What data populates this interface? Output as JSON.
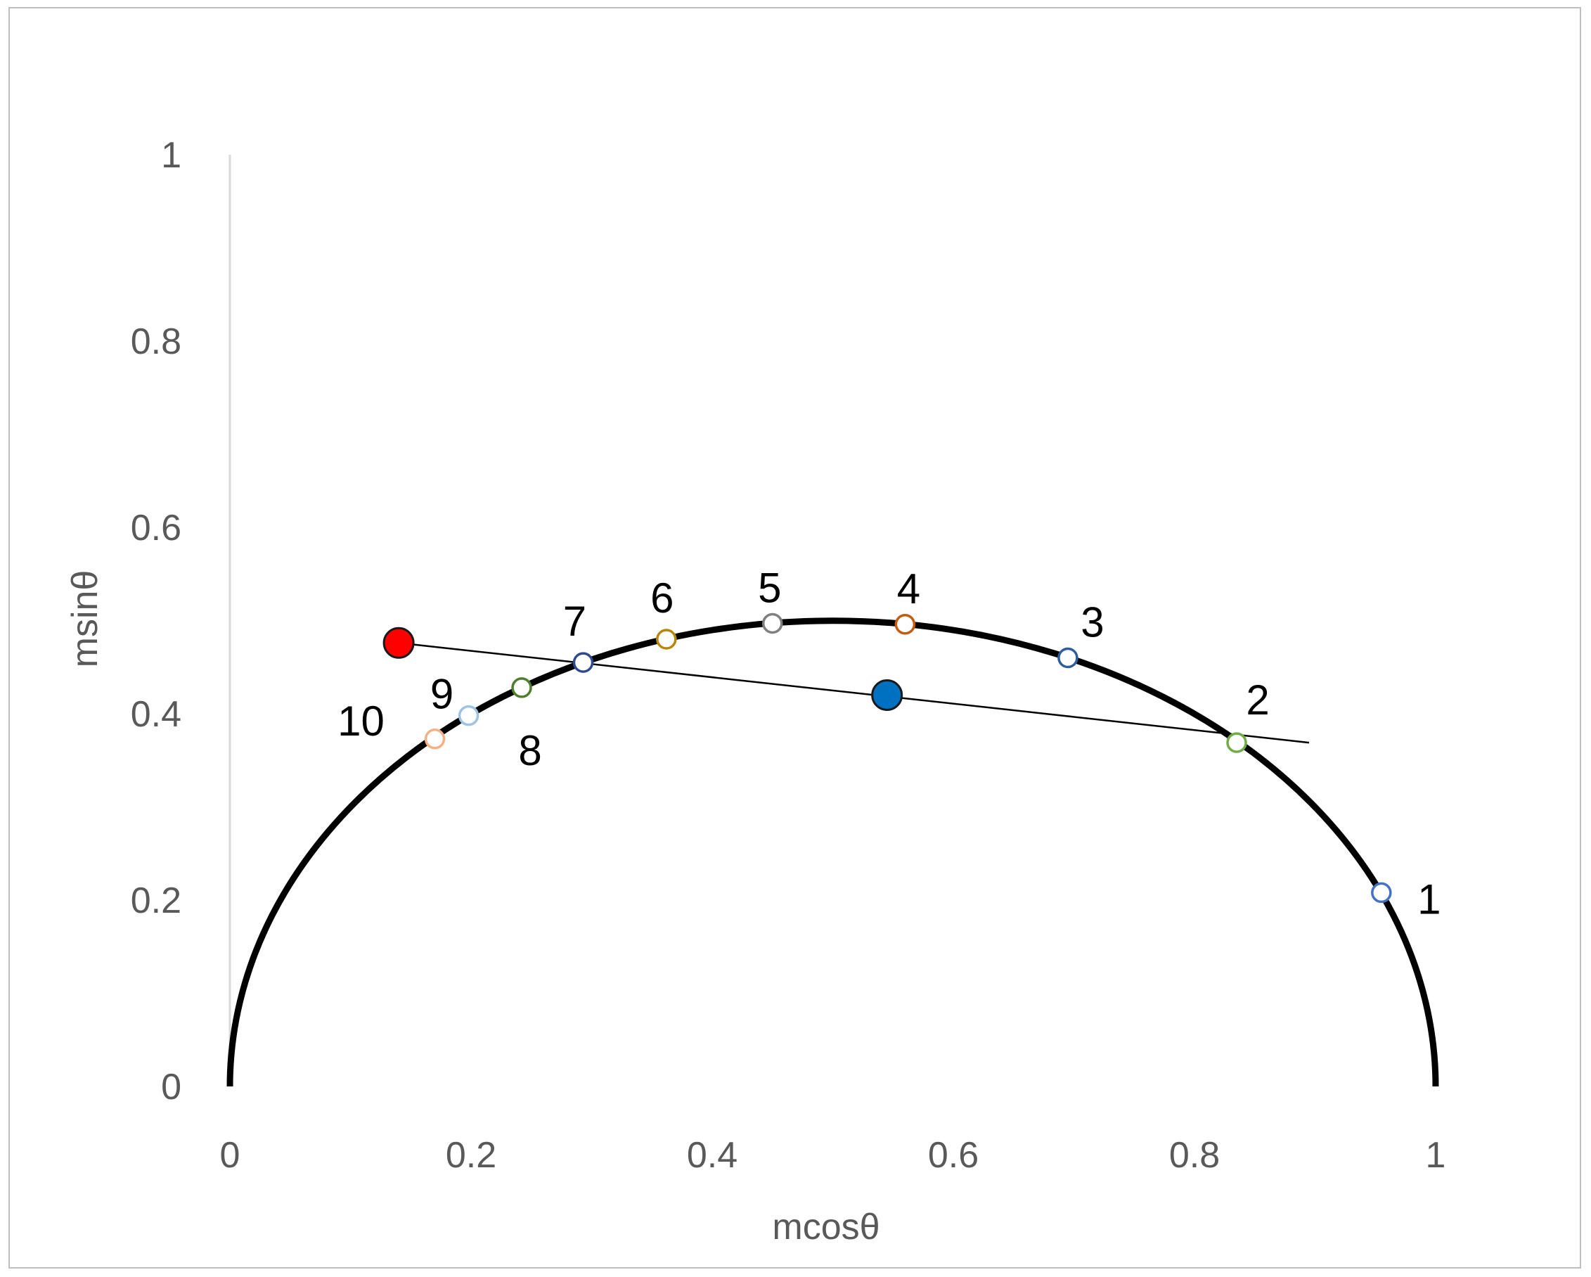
{
  "chart_data": {
    "type": "scatter",
    "title": "",
    "xlabel": "mcosθ",
    "ylabel": "msinθ",
    "xlim": [
      0,
      1
    ],
    "ylim": [
      0,
      1
    ],
    "x_ticks": [
      "0",
      "0.2",
      "0.4",
      "0.6",
      "0.8",
      "1"
    ],
    "y_ticks": [
      "0",
      "0.2",
      "0.4",
      "0.6",
      "0.8",
      "1"
    ],
    "grid": false,
    "legend": "none",
    "semicircle": {
      "center": [
        0.5,
        0
      ],
      "radius": 0.5,
      "color": "#000000"
    },
    "points": [
      {
        "label": "1",
        "x": 0.955,
        "y": 0.208,
        "color": "#4472c4"
      },
      {
        "label": "2",
        "x": 0.835,
        "y": 0.369,
        "color": "#70ad47"
      },
      {
        "label": "3",
        "x": 0.695,
        "y": 0.46,
        "color": "#2e5c9e"
      },
      {
        "label": "4",
        "x": 0.56,
        "y": 0.496,
        "color": "#c55a11"
      },
      {
        "label": "5",
        "x": 0.45,
        "y": 0.497,
        "color": "#7f7f7f"
      },
      {
        "label": "6",
        "x": 0.362,
        "y": 0.48,
        "color": "#b8860b"
      },
      {
        "label": "7",
        "x": 0.293,
        "y": 0.455,
        "color": "#2e4a8c"
      },
      {
        "label": "8",
        "x": 0.242,
        "y": 0.428,
        "color": "#4e7f2d"
      },
      {
        "label": "9",
        "x": 0.198,
        "y": 0.398,
        "color": "#9dc3e6"
      },
      {
        "label": "10",
        "x": 0.17,
        "y": 0.373,
        "color": "#f4b183"
      }
    ],
    "markers": [
      {
        "name": "red-point",
        "x": 0.14,
        "y": 0.476,
        "color": "#ff0000"
      },
      {
        "name": "blue-point",
        "x": 0.545,
        "y": 0.42,
        "color": "#0070c0"
      }
    ],
    "line": {
      "from": [
        0.14,
        0.476
      ],
      "to": [
        0.895,
        0.369
      ],
      "color": "#000000"
    }
  }
}
